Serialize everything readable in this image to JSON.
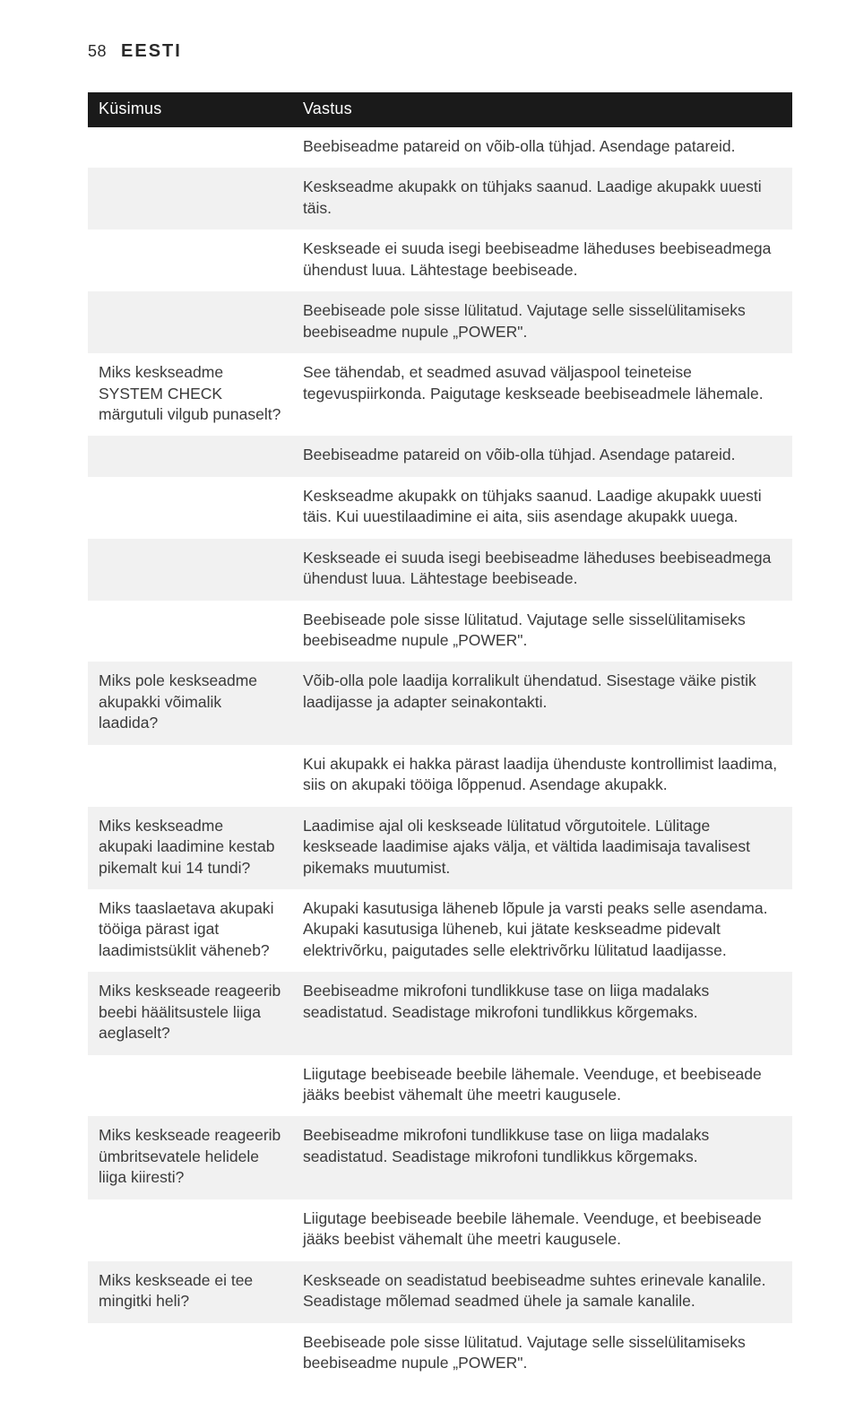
{
  "page_number": "58",
  "language_label": "EESTI",
  "table": {
    "background_color": "#ffffff",
    "alt_row_color": "#f1f1f1",
    "header_bg": "#1a1a1a",
    "header_fg": "#ffffff",
    "font_size_pt": 13,
    "columns": [
      {
        "key": "question",
        "label": "Küsimus",
        "width_pct": 29
      },
      {
        "key": "answer",
        "label": "Vastus",
        "width_pct": 71
      }
    ],
    "rows": [
      {
        "question": "",
        "answer": "Beebiseadme patareid on võib-olla tühjad. Asendage patareid."
      },
      {
        "question": "",
        "answer": "Keskseadme akupakk on tühjaks saanud. Laadige akupakk uuesti täis."
      },
      {
        "question": "",
        "answer": "Keskseade ei suuda isegi beebiseadme läheduses beebiseadmega ühendust luua. Lähtestage beebiseade."
      },
      {
        "question": "",
        "answer": "Beebiseade pole sisse lülitatud. Vajutage selle sisselülitamiseks beebiseadme nupule „POWER\"."
      },
      {
        "question": "Miks keskseadme SYSTEM CHECK märgutuli vilgub punaselt?",
        "answer": "See tähendab, et seadmed asuvad väljaspool teineteise tegevuspiirkonda. Paigutage keskseade beebiseadmele lähemale."
      },
      {
        "question": "",
        "answer": "Beebiseadme patareid on võib-olla tühjad. Asendage patareid."
      },
      {
        "question": "",
        "answer": "Keskseadme akupakk on tühjaks saanud. Laadige akupakk uuesti täis. Kui uuestilaadimine ei aita, siis asendage akupakk uuega."
      },
      {
        "question": "",
        "answer": "Keskseade ei suuda isegi beebiseadme läheduses beebiseadmega ühendust luua. Lähtestage beebiseade."
      },
      {
        "question": "",
        "answer": "Beebiseade pole sisse lülitatud. Vajutage selle sisselülitamiseks beebiseadme nupule „POWER\"."
      },
      {
        "question": "Miks pole keskseadme akupakki võimalik laadida?",
        "answer": "Võib-olla pole laadija korralikult ühendatud. Sisestage väike pistik laadijasse ja adapter seinakontakti."
      },
      {
        "question": "",
        "answer": "Kui akupakk ei hakka pärast laadija ühenduste kontrollimist laadima, siis on akupaki tööiga lõppenud. Asendage akupakk."
      },
      {
        "question": "Miks keskseadme akupaki laadimine kestab pikemalt kui 14 tundi?",
        "answer": "Laadimise ajal oli keskseade lülitatud võrgutoitele. Lülitage keskseade laadimise ajaks välja, et vältida laadimisaja tavalisest pikemaks muutumist."
      },
      {
        "question": "Miks taaslaetava akupaki tööiga pärast igat laadimistsüklit väheneb?",
        "answer": "Akupaki kasutusiga läheneb lõpule ja varsti peaks selle asendama. Akupaki kasutusiga lüheneb, kui jätate keskseadme pidevalt elektrivõrku, paigutades selle elektrivõrku lülitatud laadijasse."
      },
      {
        "question": "Miks keskseade reageerib beebi häälitsustele liiga aeglaselt?",
        "answer": "Beebiseadme mikrofoni tundlikkuse tase on liiga madalaks seadistatud. Seadistage mikrofoni tundlikkus kõrgemaks."
      },
      {
        "question": "",
        "answer": "Liigutage beebiseade beebile lähemale. Veenduge, et beebiseade jääks beebist vähemalt ühe meetri kaugusele."
      },
      {
        "question": "Miks keskseade reageerib ümbritsevatele helidele liiga kiiresti?",
        "answer": "Beebiseadme mikrofoni tundlikkuse tase on liiga madalaks seadistatud. Seadistage mikrofoni tundlikkus kõrgemaks."
      },
      {
        "question": "",
        "answer": "Liigutage beebiseade beebile lähemale. Veenduge, et beebiseade jääks beebist vähemalt ühe meetri kaugusele."
      },
      {
        "question": "Miks keskseade ei tee mingitki heli?",
        "answer": "Keskseade on seadistatud beebiseadme suhtes erinevale kanalile. Seadistage mõlemad seadmed ühele ja samale kanalile."
      },
      {
        "question": "",
        "answer": "Beebiseade pole sisse lülitatud. Vajutage selle sisselülitamiseks beebiseadme nupule „POWER\"."
      }
    ]
  }
}
